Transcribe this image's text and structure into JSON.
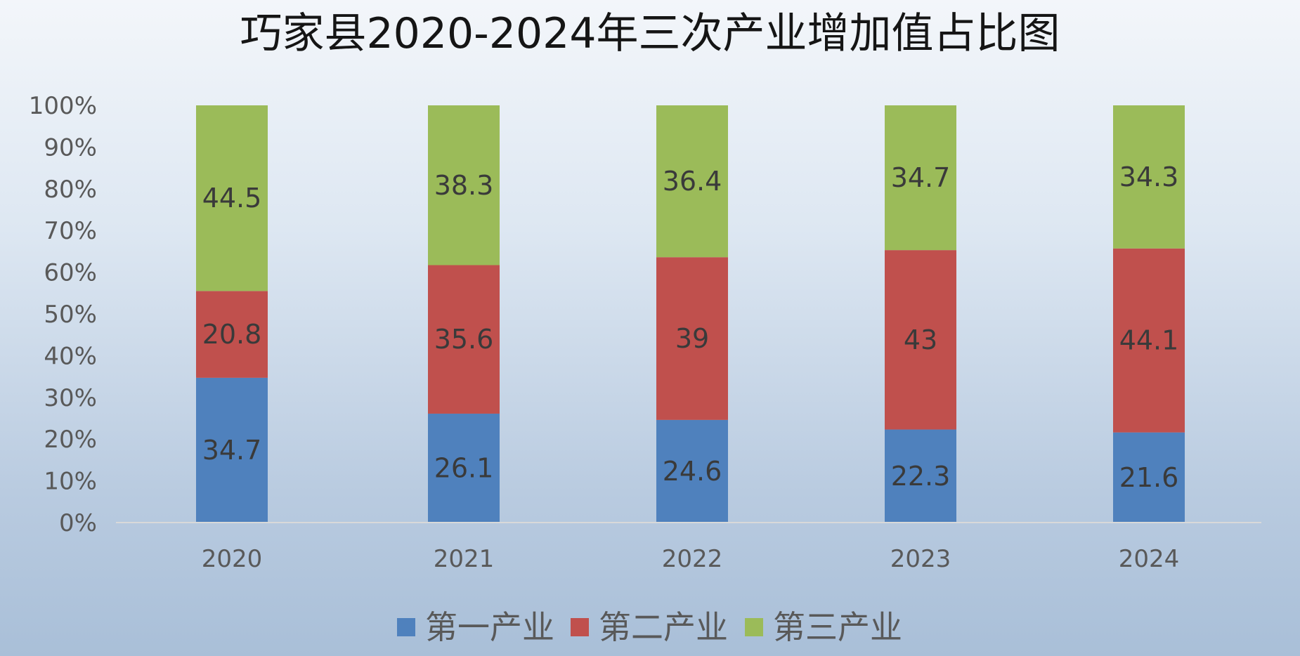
{
  "chart_data": {
    "type": "bar",
    "stacked": true,
    "percent_stacked": true,
    "title": "巧家县2020-2024年三次产业增加值占比图",
    "categories": [
      "2020",
      "2021",
      "2022",
      "2023",
      "2024"
    ],
    "series": [
      {
        "name": "第一产业",
        "color": "#4f81bd",
        "values": [
          34.7,
          26.1,
          24.6,
          22.3,
          21.6
        ],
        "labels": [
          "34.7",
          "26.1",
          "24.6",
          "22.3",
          "21.6"
        ]
      },
      {
        "name": "第二产业",
        "color": "#c0504d",
        "values": [
          20.8,
          35.6,
          39,
          43,
          44.1
        ],
        "labels": [
          "20.8",
          "35.6",
          "39",
          "43",
          "44.1"
        ]
      },
      {
        "name": "第三产业",
        "color": "#9bbb59",
        "values": [
          44.5,
          38.3,
          36.4,
          34.7,
          34.3
        ],
        "labels": [
          "44.5",
          "38.3",
          "36.4",
          "34.7",
          "34.3"
        ]
      }
    ],
    "y_ticks": [
      "0%",
      "10%",
      "20%",
      "30%",
      "40%",
      "50%",
      "60%",
      "70%",
      "80%",
      "90%",
      "100%"
    ],
    "ylim": [
      0,
      100
    ],
    "grid": false,
    "legend_position": "bottom"
  }
}
